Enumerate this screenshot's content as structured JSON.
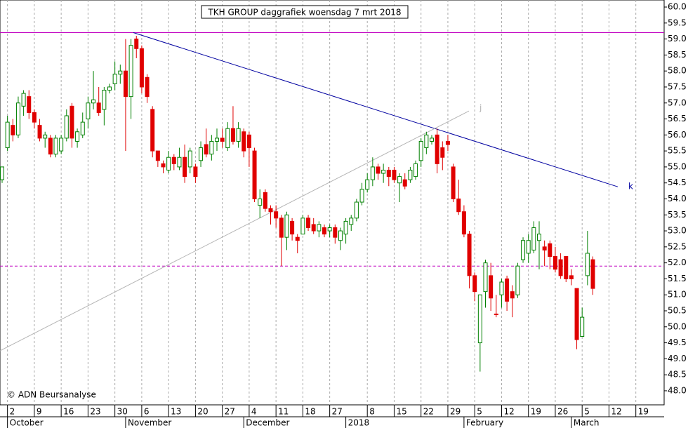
{
  "chart_data": {
    "type": "candlestick",
    "title": "TKH GROUP daggrafiek woensdag 7 mrt 2018",
    "credit": "© ADN Beursanalyse",
    "categories": [
      null,
      "2",
      null,
      null,
      null,
      null,
      "9",
      null,
      null,
      null,
      null,
      "16",
      null,
      null,
      null,
      null,
      "23",
      null,
      null,
      null,
      null,
      "30",
      null,
      null,
      null,
      null,
      "6",
      null,
      null,
      null,
      null,
      "13",
      null,
      null,
      null,
      null,
      "20",
      null,
      null,
      null,
      null,
      "27",
      null,
      null,
      null,
      null,
      "4",
      null,
      null,
      null,
      null,
      "11",
      null,
      null,
      null,
      null,
      "18",
      null,
      null,
      null,
      null,
      "27",
      null,
      null,
      null,
      null,
      null,
      null,
      "8",
      null,
      null,
      null,
      null,
      "15",
      null,
      null,
      null,
      null,
      "22",
      null,
      null,
      null,
      null,
      "29",
      null,
      null,
      null,
      null,
      "5",
      null,
      null,
      null,
      null,
      "12",
      null,
      null,
      null,
      null,
      "19",
      null,
      null,
      null,
      null,
      "26",
      null,
      null,
      null,
      null,
      "5",
      null,
      null,
      null,
      null,
      "12",
      null,
      null,
      null,
      null,
      "19"
    ],
    "months": [
      null,
      "October",
      null,
      null,
      null,
      null,
      null,
      null,
      null,
      null,
      null,
      null,
      null,
      null,
      null,
      null,
      null,
      null,
      null,
      null,
      null,
      null,
      null,
      "November",
      null,
      null,
      null,
      null,
      null,
      null,
      null,
      null,
      null,
      null,
      null,
      null,
      null,
      null,
      null,
      null,
      null,
      null,
      null,
      null,
      null,
      "December",
      null,
      null,
      null,
      null,
      null,
      null,
      null,
      null,
      null,
      null,
      null,
      null,
      null,
      null,
      null,
      null,
      null,
      null,
      "2018",
      null,
      null,
      null,
      null,
      null,
      null,
      null,
      null,
      null,
      null,
      null,
      null,
      null,
      null,
      null,
      null,
      null,
      null,
      null,
      null,
      null,
      "February",
      null,
      null,
      null,
      null,
      null,
      null,
      null,
      null,
      null,
      null,
      null,
      null,
      null,
      null,
      null,
      null,
      null,
      null,
      null,
      "March",
      null,
      null,
      null,
      null,
      null,
      null,
      null,
      null,
      null,
      null,
      null,
      null
    ],
    "open": [
      54.6,
      55.6,
      56.3,
      56.0,
      56.9,
      57.2,
      56.7,
      56.3,
      55.9,
      55.9,
      55.4,
      55.5,
      55.9,
      56.9,
      55.8,
      56.0,
      56.5,
      57.0,
      57.0,
      56.8,
      57.4,
      57.6,
      57.9,
      58.0,
      57.2,
      59.0,
      58.7,
      57.8,
      56.8,
      55.5,
      55.1,
      54.9,
      55.3,
      55.0,
      55.3,
      55.0,
      55.0,
      55.2,
      55.7,
      55.4,
      55.8,
      55.9,
      55.6,
      56.2,
      55.8,
      56.1,
      56.0,
      55.5,
      53.8,
      54.2,
      53.7,
      53.6,
      53.4,
      52.8,
      53.3,
      52.8,
      52.9,
      53.4,
      53.2,
      53.0,
      53.1,
      53.0,
      53.1,
      52.7,
      52.9,
      53.2,
      53.4,
      53.9,
      54.3,
      54.6,
      55.0,
      54.8,
      54.9,
      54.9,
      54.5,
      54.6,
      54.6,
      54.7,
      55.2,
      55.6,
      55.8,
      56.0,
      55.6,
      55.8,
      55.0,
      54.0,
      53.6,
      52.9,
      51.6,
      49.5,
      51.1,
      51.6,
      50.4,
      51.0,
      51.5,
      51.1,
      51.0,
      52.1,
      52.3,
      52.4,
      52.7,
      52.5,
      52.6,
      52.2,
      52.1,
      52.2,
      51.6,
      51.2,
      49.7,
      51.6,
      52.1,
      null,
      null,
      null,
      null,
      null,
      null,
      null,
      null
    ],
    "high": [
      55.0,
      56.6,
      56.5,
      57.2,
      57.4,
      57.4,
      56.8,
      56.5,
      56.1,
      56.0,
      56.0,
      56.0,
      56.8,
      57.0,
      56.2,
      56.7,
      57.2,
      58.0,
      57.5,
      57.5,
      57.6,
      58.3,
      58.2,
      59.0,
      59.0,
      59.1,
      58.8,
      57.9,
      56.9,
      55.5,
      55.2,
      55.5,
      55.4,
      55.6,
      55.7,
      55.6,
      55.1,
      55.8,
      56.2,
      56.0,
      56.2,
      56.2,
      56.4,
      56.9,
      56.4,
      56.2,
      56.1,
      55.6,
      54.3,
      54.3,
      53.8,
      53.8,
      53.5,
      53.6,
      53.4,
      52.9,
      53.5,
      53.5,
      53.4,
      53.3,
      53.2,
      53.2,
      53.2,
      53.1,
      53.4,
      53.5,
      54.0,
      54.5,
      54.8,
      55.3,
      55.1,
      55.1,
      55.0,
      55.0,
      54.8,
      54.8,
      55.0,
      55.2,
      55.9,
      56.1,
      56.0,
      56.2,
      55.8,
      56.0,
      55.1,
      54.6,
      53.8,
      53.0,
      51.7,
      51.0,
      52.1,
      52.0,
      51.0,
      51.5,
      51.6,
      51.3,
      52.0,
      52.8,
      52.9,
      53.3,
      53.3,
      52.7,
      52.7,
      52.5,
      52.3,
      52.2,
      51.8,
      51.2,
      50.6,
      53.0,
      52.2,
      null,
      null,
      null,
      null,
      null,
      null,
      null,
      null
    ],
    "low": [
      54.5,
      55.5,
      55.8,
      55.9,
      56.6,
      56.5,
      56.2,
      55.8,
      55.6,
      55.3,
      55.3,
      55.4,
      55.8,
      55.6,
      55.6,
      55.9,
      56.2,
      56.8,
      56.6,
      56.3,
      57.3,
      57.4,
      57.6,
      55.5,
      56.5,
      58.4,
      57.3,
      57.0,
      55.3,
      55.0,
      54.8,
      54.8,
      54.9,
      54.9,
      54.5,
      54.8,
      54.5,
      55.0,
      55.3,
      55.2,
      55.5,
      55.6,
      55.5,
      55.7,
      55.6,
      55.3,
      55.0,
      53.9,
      53.4,
      53.6,
      53.2,
      53.1,
      51.9,
      52.4,
      52.7,
      52.3,
      52.9,
      53.0,
      52.9,
      52.8,
      52.8,
      52.8,
      52.6,
      52.4,
      52.6,
      53.0,
      53.3,
      53.8,
      54.2,
      54.4,
      54.6,
      54.5,
      54.4,
      54.5,
      53.9,
      54.3,
      54.5,
      54.6,
      55.0,
      55.4,
      55.7,
      54.8,
      54.9,
      55.5,
      53.9,
      53.5,
      52.8,
      51.2,
      50.8,
      48.6,
      50.6,
      50.5,
      50.3,
      50.6,
      50.5,
      50.3,
      50.9,
      52.0,
      52.0,
      52.3,
      51.8,
      51.9,
      51.8,
      51.7,
      51.5,
      51.4,
      51.3,
      49.3,
      49.7,
      51.3,
      51.0,
      null,
      null,
      null,
      null,
      null,
      null,
      null,
      null
    ],
    "close": [
      55.0,
      56.4,
      56.0,
      57.0,
      57.3,
      56.7,
      56.4,
      55.9,
      56.0,
      55.4,
      55.9,
      55.9,
      56.6,
      55.9,
      56.1,
      56.4,
      57.0,
      57.1,
      56.7,
      57.4,
      57.5,
      57.9,
      58.0,
      57.2,
      58.8,
      58.7,
      57.5,
      57.2,
      55.5,
      55.2,
      55.0,
      55.3,
      55.1,
      55.3,
      54.7,
      55.5,
      54.7,
      55.6,
      55.4,
      55.8,
      55.9,
      55.8,
      56.2,
      55.8,
      56.2,
      55.5,
      55.6,
      54.0,
      54.0,
      53.7,
      53.6,
      53.4,
      52.8,
      53.5,
      52.9,
      52.7,
      53.4,
      53.1,
      53.0,
      53.2,
      52.9,
      53.1,
      52.8,
      53.0,
      53.3,
      53.4,
      53.9,
      54.3,
      54.6,
      55.0,
      54.8,
      54.9,
      54.7,
      54.6,
      54.7,
      54.4,
      54.9,
      55.1,
      55.8,
      56.0,
      55.9,
      55.1,
      55.3,
      55.7,
      54.0,
      53.6,
      52.9,
      51.6,
      51.1,
      51.0,
      52.0,
      50.9,
      50.4,
      51.4,
      50.8,
      50.9,
      51.9,
      52.7,
      52.7,
      53.1,
      52.9,
      52.4,
      52.2,
      51.8,
      51.6,
      51.5,
      51.5,
      49.6,
      50.3,
      52.3,
      51.2,
      null,
      null,
      null,
      null,
      null,
      null,
      null,
      null
    ],
    "up_color": "#008000",
    "down_color": "#e00000",
    "ylim": [
      47.56,
      60.22
    ],
    "yticks": [
      {
        "value": 48,
        "label": "48.0"
      },
      {
        "value": 48.5,
        "label": "48.5"
      },
      {
        "value": 49,
        "label": "49.0"
      },
      {
        "value": 49.5,
        "label": "49.5"
      },
      {
        "value": 50,
        "label": "50.0"
      },
      {
        "value": 50.5,
        "label": "50.5"
      },
      {
        "value": 51,
        "label": "51.0"
      },
      {
        "value": 51.5,
        "label": "51.5"
      },
      {
        "value": 52,
        "label": "52.0"
      },
      {
        "value": 52.5,
        "label": "52.5"
      },
      {
        "value": 53,
        "label": "53.0"
      },
      {
        "value": 53.5,
        "label": "53.5"
      },
      {
        "value": 54,
        "label": "54.0"
      },
      {
        "value": 54.5,
        "label": "54.5"
      },
      {
        "value": 55,
        "label": "55.0"
      },
      {
        "value": 55.5,
        "label": "55.5"
      },
      {
        "value": 56,
        "label": "56.0"
      },
      {
        "value": 56.5,
        "label": "56.5"
      },
      {
        "value": 57,
        "label": "57.0"
      },
      {
        "value": 57.5,
        "label": "57.5"
      },
      {
        "value": 58,
        "label": "58.0"
      },
      {
        "value": 58.5,
        "label": "58.5"
      },
      {
        "value": 59,
        "label": "59.0"
      },
      {
        "value": 59.5,
        "label": "59.5"
      },
      {
        "value": 60,
        "label": "60.0"
      }
    ],
    "hlines": [
      {
        "value": 59.2,
        "color": "#c000c0",
        "dashed": false
      },
      {
        "value": 51.9,
        "color": "#c000c0",
        "dashed": true
      }
    ],
    "trendlines": [
      {
        "label": "k",
        "color": "#0000a0",
        "values": [
          59.2,
          54.38
        ]
      },
      {
        "label": "j",
        "color": "#b4b4b4",
        "values": [
          49.25,
          56.75
        ]
      }
    ],
    "grid": true
  }
}
